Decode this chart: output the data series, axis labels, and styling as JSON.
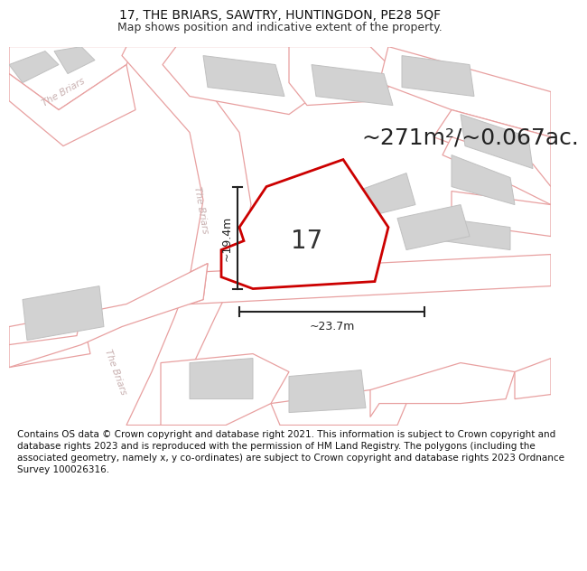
{
  "title_line1": "17, THE BRIARS, SAWTRY, HUNTINGDON, PE28 5QF",
  "title_line2": "Map shows position and indicative extent of the property.",
  "area_text": "~271m²/~0.067ac.",
  "property_number": "17",
  "dim_vertical": "~19.4m",
  "dim_horizontal": "~23.7m",
  "map_bg": "#f0f0f0",
  "road_fill": "#ffffff",
  "road_edge": "#e8a0a0",
  "building_fill": "#d2d2d2",
  "building_edge": "#c0c0c0",
  "property_fill": "#ffffff",
  "property_stroke": "#cc0000",
  "road_label_color": "#c8b0b0",
  "dim_color": "#222222",
  "text_color": "#333333",
  "footer_text": "Contains OS data © Crown copyright and database right 2021. This information is subject to Crown copyright and database rights 2023 and is reproduced with the permission of HM Land Registry. The polygons (including the associated geometry, namely x, y co-ordinates) are subject to Crown copyright and database rights 2023 Ordnance Survey 100026316.",
  "title_fontsize": 10,
  "subtitle_fontsize": 9,
  "area_fontsize": 18,
  "label_fontsize": 7.5,
  "number_fontsize": 20,
  "dim_fontsize": 9,
  "footer_fontsize": 7.5
}
